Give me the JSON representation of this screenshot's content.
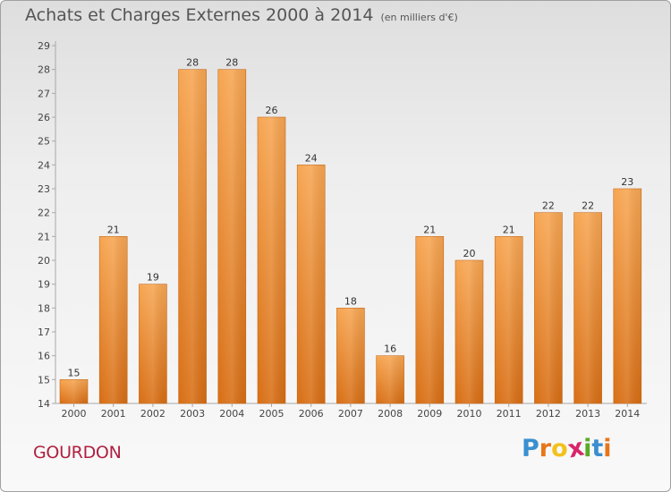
{
  "chart_data": {
    "type": "bar",
    "title": "Achats et Charges Externes 2000 à 2014",
    "subtitle": "(en milliers d'€)",
    "xlabel": "",
    "ylabel": "",
    "categories": [
      "2000",
      "2001",
      "2002",
      "2003",
      "2004",
      "2005",
      "2006",
      "2007",
      "2008",
      "2009",
      "2010",
      "2011",
      "2012",
      "2013",
      "2014"
    ],
    "values": [
      15,
      21,
      19,
      28,
      28,
      26,
      24,
      18,
      16,
      21,
      20,
      21,
      22,
      22,
      23
    ],
    "ylim": [
      14,
      29
    ],
    "yticks": [
      14,
      15,
      16,
      17,
      18,
      19,
      20,
      21,
      22,
      23,
      24,
      25,
      26,
      27,
      28,
      29
    ],
    "grid": false,
    "legend": "none",
    "bar_color": "#f0963a"
  },
  "footer": {
    "commune": "GOURDON",
    "logo_letters": [
      {
        "ch": "P",
        "color": "#3a8fd0"
      },
      {
        "ch": "r",
        "color": "#e8751a"
      },
      {
        "ch": "o",
        "color": "#f2c21c"
      },
      {
        "ch": "x",
        "color": "#d8256a"
      },
      {
        "ch": "i",
        "color": "#5aaa2a"
      },
      {
        "ch": "t",
        "color": "#3a8fd0"
      },
      {
        "ch": "i",
        "color": "#e8751a"
      }
    ]
  }
}
